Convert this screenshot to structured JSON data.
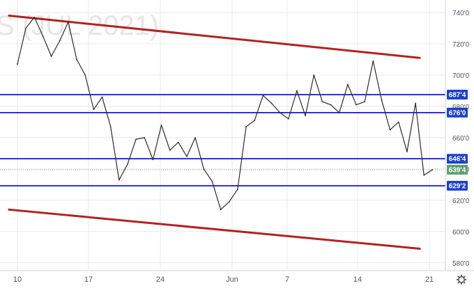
{
  "watermark": "S (JUL 2021)",
  "settings_icon": "gear-icon",
  "colors": {
    "background": "#ffffff",
    "grid": "#e6e9ef",
    "price_line": "#2b2b2b",
    "channel": "#b22222",
    "level": "#0000dd",
    "level_tag": "#1e40c8",
    "current_tag": "#5fa06f",
    "axis_text": "#50535e"
  },
  "chart_data": {
    "type": "line",
    "title": "S (JUL 2021)",
    "xlabel": "",
    "ylabel": "",
    "ylim": [
      575,
      748
    ],
    "grid": true,
    "x_ticks": [
      "10",
      "17",
      "24",
      "Jun",
      "7",
      "14",
      "21"
    ],
    "y_ticks": [
      "740'0",
      "720'0",
      "700'0",
      "680'0",
      "660'0",
      "640'0",
      "620'0",
      "600'0",
      "580'0"
    ],
    "y_tick_values": [
      740,
      720,
      700,
      680,
      660,
      640,
      620,
      600,
      580
    ],
    "price_series": {
      "x": [
        0,
        1,
        2,
        3,
        4,
        5,
        6,
        7,
        8,
        9,
        10,
        11,
        12,
        13,
        14,
        15,
        16,
        17,
        18,
        19,
        20,
        21,
        22,
        23,
        24,
        25,
        26,
        27,
        28,
        29,
        30,
        31,
        32,
        33,
        34,
        35,
        36,
        37,
        38,
        39,
        40,
        41
      ],
      "y": [
        707,
        730,
        737,
        725,
        712,
        722,
        734,
        710,
        700,
        678,
        686,
        667,
        633,
        643,
        659,
        660,
        646,
        668,
        652,
        657,
        648,
        660,
        640,
        632,
        614,
        619,
        627,
        667,
        671,
        687,
        682,
        676,
        672,
        690,
        674,
        700,
        683,
        681,
        676,
        694,
        681,
        683
      ]
    },
    "price_series_tail": {
      "x": [
        42,
        43,
        44,
        45,
        46,
        47,
        48
      ],
      "y": [
        709,
        684,
        665,
        670,
        651,
        682,
        636
      ]
    },
    "price_series_end": {
      "x": [
        49
      ],
      "y": [
        639.5
      ]
    },
    "channel_lines": [
      {
        "x": [
          -1,
          47.5
        ],
        "y": [
          738,
          711
        ]
      },
      {
        "x": [
          -1,
          47.5
        ],
        "y": [
          614,
          589
        ]
      }
    ],
    "levels": [
      {
        "value": 687.5,
        "label": "687'4"
      },
      {
        "value": 676,
        "label": "676'0"
      },
      {
        "value": 646.5,
        "label": "646'4"
      },
      {
        "value": 629.25,
        "label": "629'2"
      }
    ],
    "current_price": {
      "value": 639.5,
      "label": "639'4"
    }
  }
}
